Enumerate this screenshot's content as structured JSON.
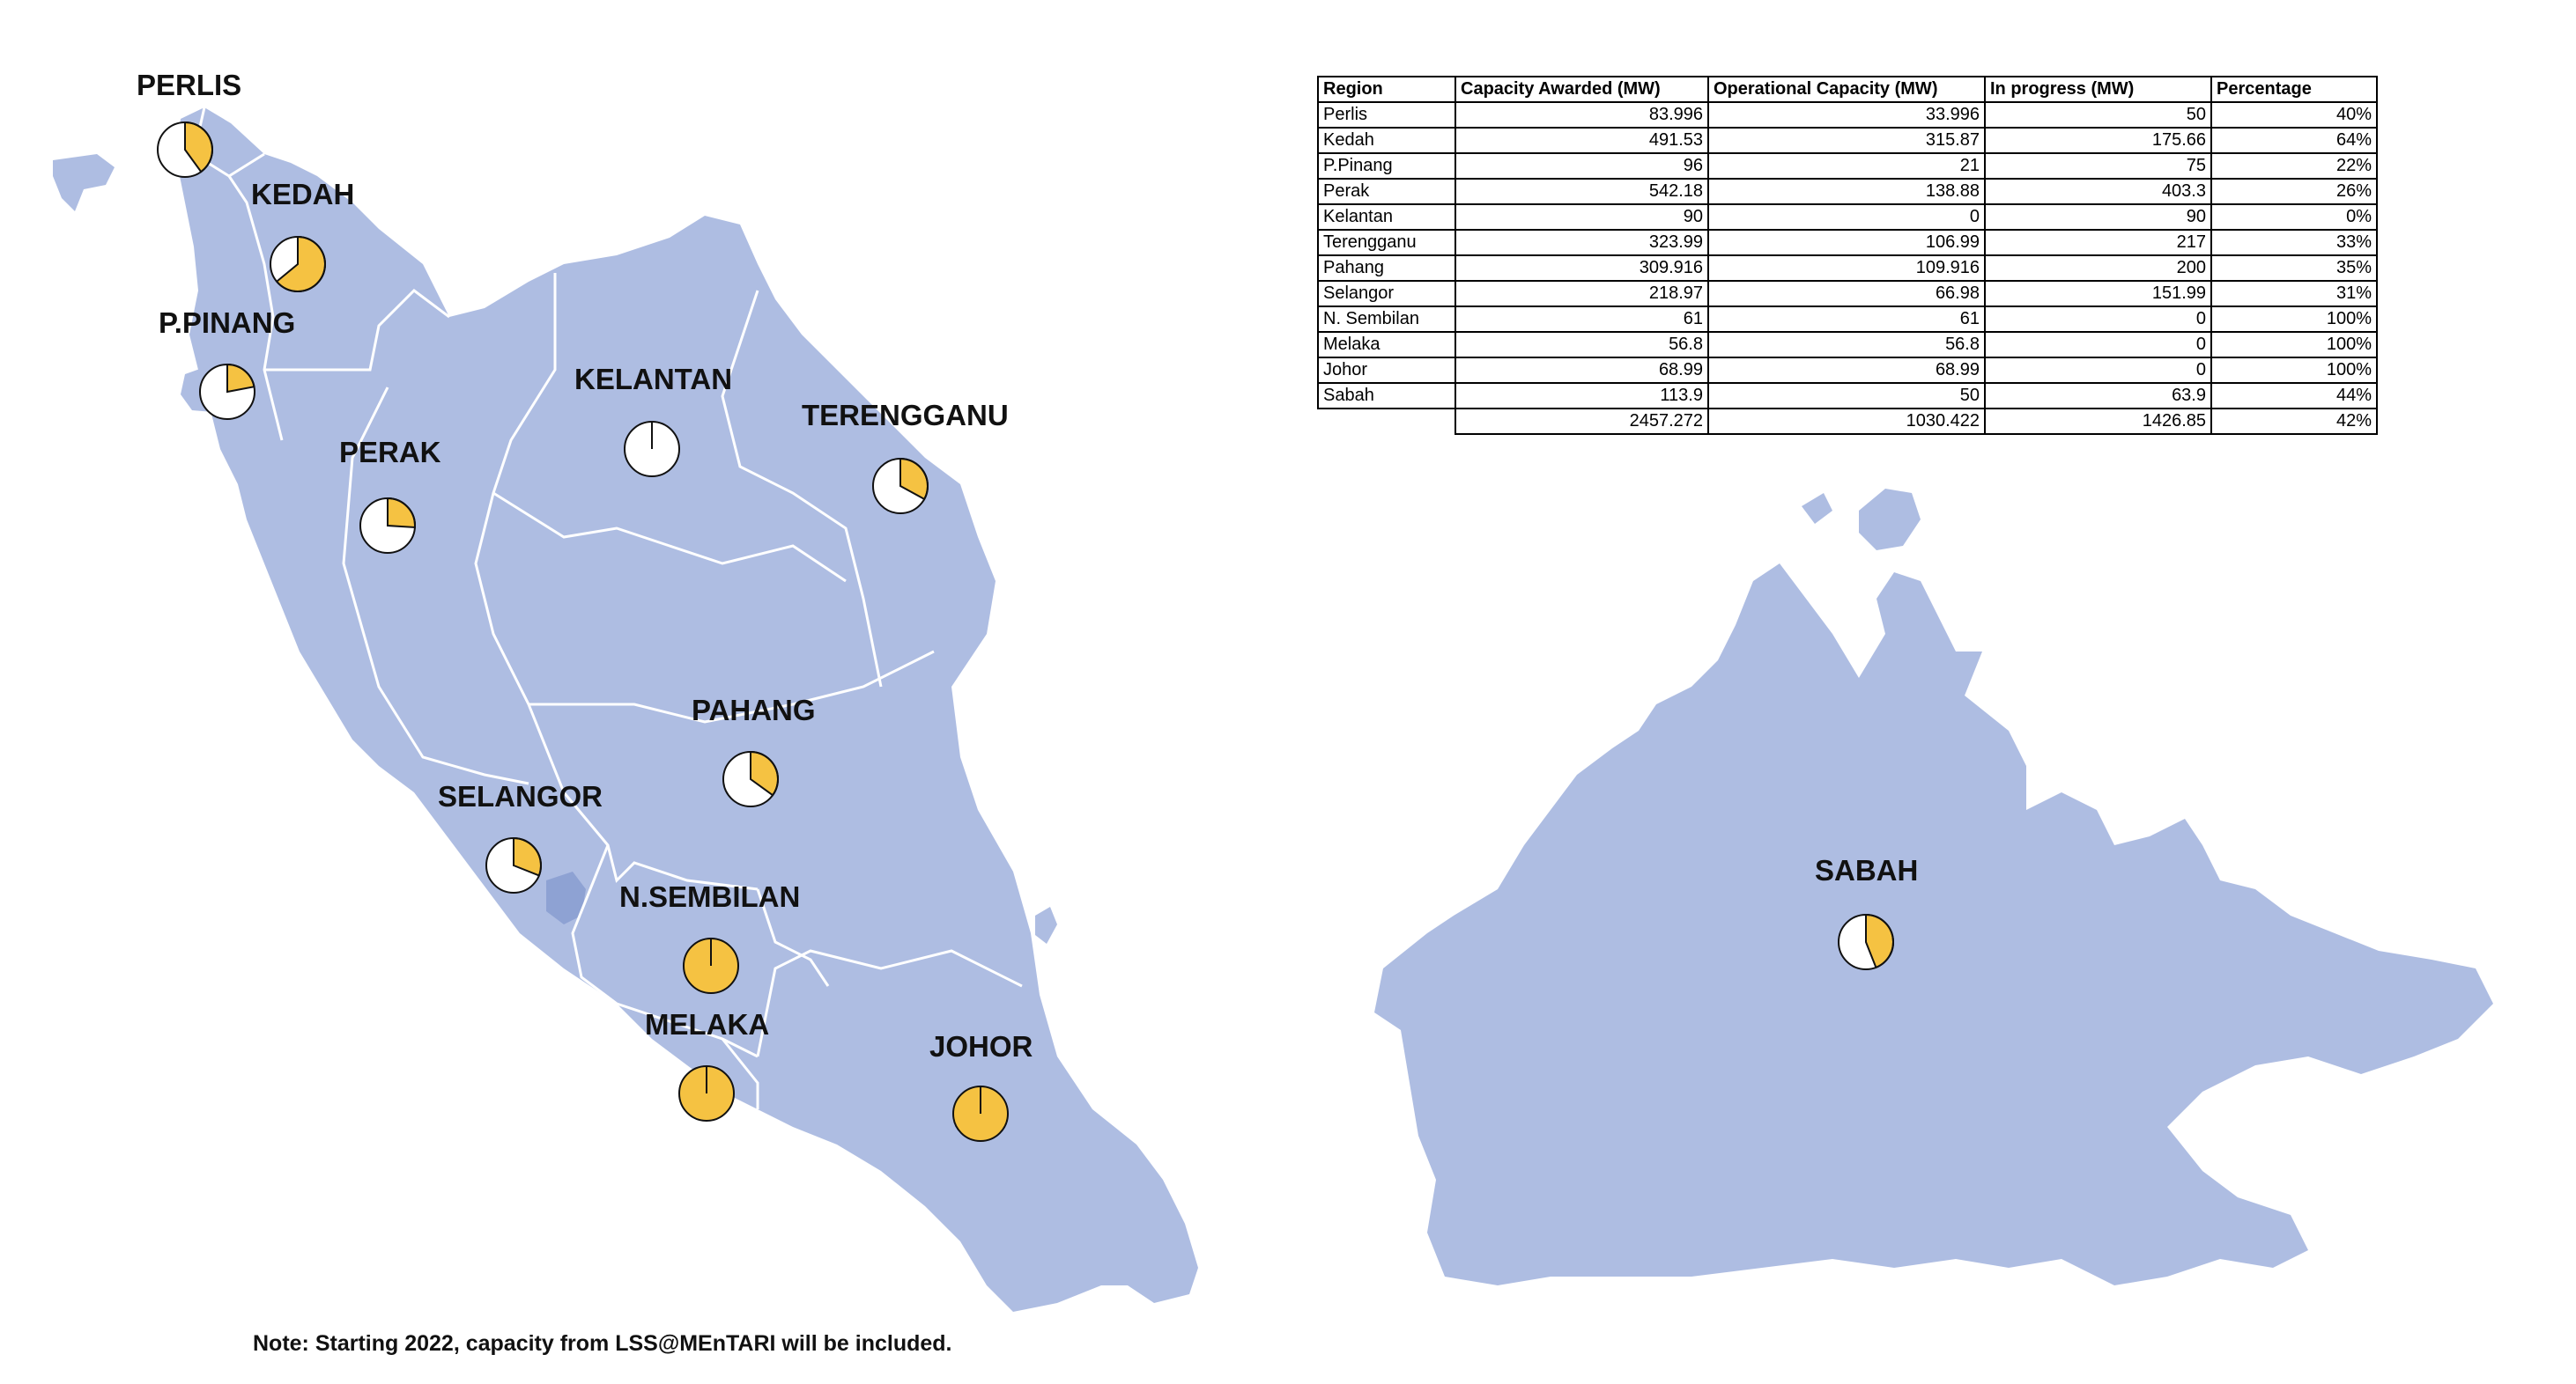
{
  "colors": {
    "land": "#aebde2",
    "border": "#ffffff",
    "lake": "#8ea2d3",
    "pie_fill": "#f5c242",
    "pie_bg": "#ffffff",
    "pie_stroke": "#111111"
  },
  "regions": [
    {
      "label": "PERLIS",
      "percentage": 0.4
    },
    {
      "label": "KEDAH",
      "percentage": 0.64
    },
    {
      "label": "P.PINANG",
      "percentage": 0.22
    },
    {
      "label": "PERAK",
      "percentage": 0.26
    },
    {
      "label": "KELANTAN",
      "percentage": 0.0
    },
    {
      "label": "TERENGGANU",
      "percentage": 0.33
    },
    {
      "label": "PAHANG",
      "percentage": 0.35
    },
    {
      "label": "SELANGOR",
      "percentage": 0.31
    },
    {
      "label": "N.SEMBILAN",
      "percentage": 1.0
    },
    {
      "label": "MELAKA",
      "percentage": 1.0
    },
    {
      "label": "JOHOR",
      "percentage": 1.0
    },
    {
      "label": "SABAH",
      "percentage": 0.44
    }
  ],
  "table": {
    "headers": [
      "Region",
      "Capacity Awarded (MW)",
      "Operational Capacity (MW)",
      "In progress (MW)",
      "Percentage"
    ],
    "rows": [
      [
        "Perlis",
        "83.996",
        "33.996",
        "50",
        "40%"
      ],
      [
        "Kedah",
        "491.53",
        "315.87",
        "175.66",
        "64%"
      ],
      [
        "P.Pinang",
        "96",
        "21",
        "75",
        "22%"
      ],
      [
        "Perak",
        "542.18",
        "138.88",
        "403.3",
        "26%"
      ],
      [
        "Kelantan",
        "90",
        "0",
        "90",
        "0%"
      ],
      [
        "Terengganu",
        "323.99",
        "106.99",
        "217",
        "33%"
      ],
      [
        "Pahang",
        "309.916",
        "109.916",
        "200",
        "35%"
      ],
      [
        "Selangor",
        "218.97",
        "66.98",
        "151.99",
        "31%"
      ],
      [
        "N. Sembilan",
        "61",
        "61",
        "0",
        "100%"
      ],
      [
        "Melaka",
        "56.8",
        "56.8",
        "0",
        "100%"
      ],
      [
        "Johor",
        "68.99",
        "68.99",
        "0",
        "100%"
      ],
      [
        "Sabah",
        "113.9",
        "50",
        "63.9",
        "44%"
      ]
    ],
    "total": [
      "",
      "2457.272",
      "1030.422",
      "1426.85",
      "42%"
    ]
  },
  "note": "Note: Starting 2022, capacity from LSS@MEnTARI will be included."
}
